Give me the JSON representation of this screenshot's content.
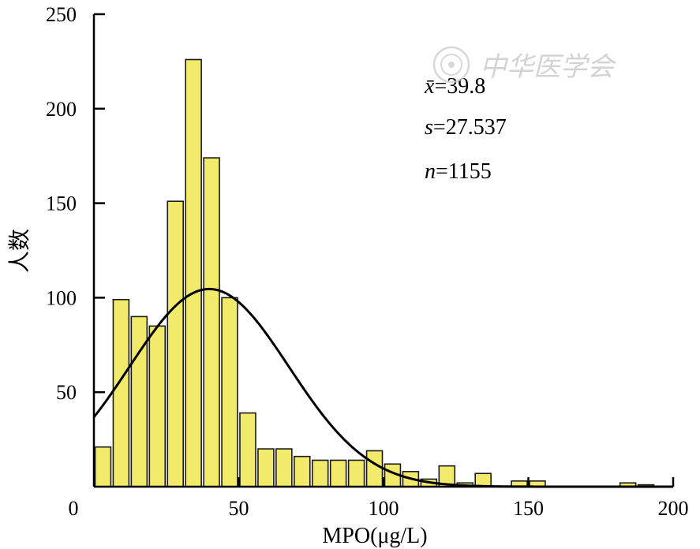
{
  "chart_data": {
    "type": "bar",
    "xlabel": "MPO(μg/L)",
    "ylabel": "人数",
    "xlim": [
      0,
      200
    ],
    "ylim": [
      0,
      250
    ],
    "x_ticks": [
      0,
      50,
      100,
      150,
      200
    ],
    "y_ticks": [
      50,
      100,
      150,
      200,
      250
    ],
    "bin_width": 6.25,
    "bins": [
      {
        "x": 0,
        "count": 21
      },
      {
        "x": 6.25,
        "count": 99
      },
      {
        "x": 12.5,
        "count": 90
      },
      {
        "x": 18.75,
        "count": 85
      },
      {
        "x": 25,
        "count": 151
      },
      {
        "x": 31.25,
        "count": 226
      },
      {
        "x": 37.5,
        "count": 174
      },
      {
        "x": 43.75,
        "count": 100
      },
      {
        "x": 50,
        "count": 39
      },
      {
        "x": 56.25,
        "count": 20
      },
      {
        "x": 62.5,
        "count": 20
      },
      {
        "x": 68.75,
        "count": 16
      },
      {
        "x": 75,
        "count": 14
      },
      {
        "x": 81.25,
        "count": 14
      },
      {
        "x": 87.5,
        "count": 14
      },
      {
        "x": 93.75,
        "count": 19
      },
      {
        "x": 100,
        "count": 12
      },
      {
        "x": 106.25,
        "count": 8
      },
      {
        "x": 112.5,
        "count": 4
      },
      {
        "x": 118.75,
        "count": 11
      },
      {
        "x": 125,
        "count": 2
      },
      {
        "x": 131.25,
        "count": 7
      },
      {
        "x": 137.5,
        "count": 0
      },
      {
        "x": 143.75,
        "count": 3
      },
      {
        "x": 150,
        "count": 3
      },
      {
        "x": 156.25,
        "count": 0
      },
      {
        "x": 162.5,
        "count": 0
      },
      {
        "x": 168.75,
        "count": 0
      },
      {
        "x": 175,
        "count": 0
      },
      {
        "x": 181.25,
        "count": 2
      },
      {
        "x": 187.5,
        "count": 1
      }
    ],
    "normal_curve": {
      "mean": 39.8,
      "sd": 27.537,
      "n": 1155
    },
    "bar_color": "#f2ea6a",
    "bar_edge_color": "#1a1a1a",
    "curve_color": "#000000",
    "grid": false,
    "legend": "none"
  },
  "stats": {
    "mean_var": "x̄",
    "mean_value": "=39.8",
    "sd_var": "s",
    "sd_value": "=27.537",
    "n_var": "n",
    "n_value": "=1155"
  },
  "watermark": {
    "text": "中华医学会"
  }
}
